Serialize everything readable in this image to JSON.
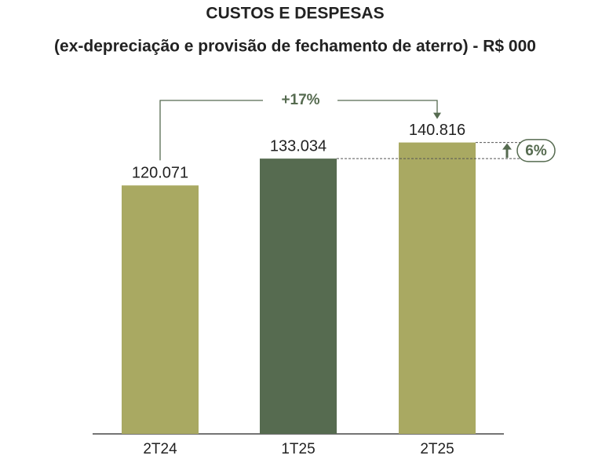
{
  "chart_data": {
    "type": "bar",
    "title": "CUSTOS E DESPESAS",
    "subtitle": "(ex-depreciação e provisão de fechamento de aterro) - R$ 000",
    "categories": [
      "2T24",
      "1T25",
      "2T25"
    ],
    "values": [
      120071,
      133034,
      140816
    ],
    "value_labels": [
      "120.071",
      "133.034",
      "140.816"
    ],
    "colors": [
      "#a9a962",
      "#566b50",
      "#a9a962"
    ],
    "ylim": [
      0,
      160000
    ],
    "annotations": [
      "+17%",
      "6%"
    ]
  }
}
